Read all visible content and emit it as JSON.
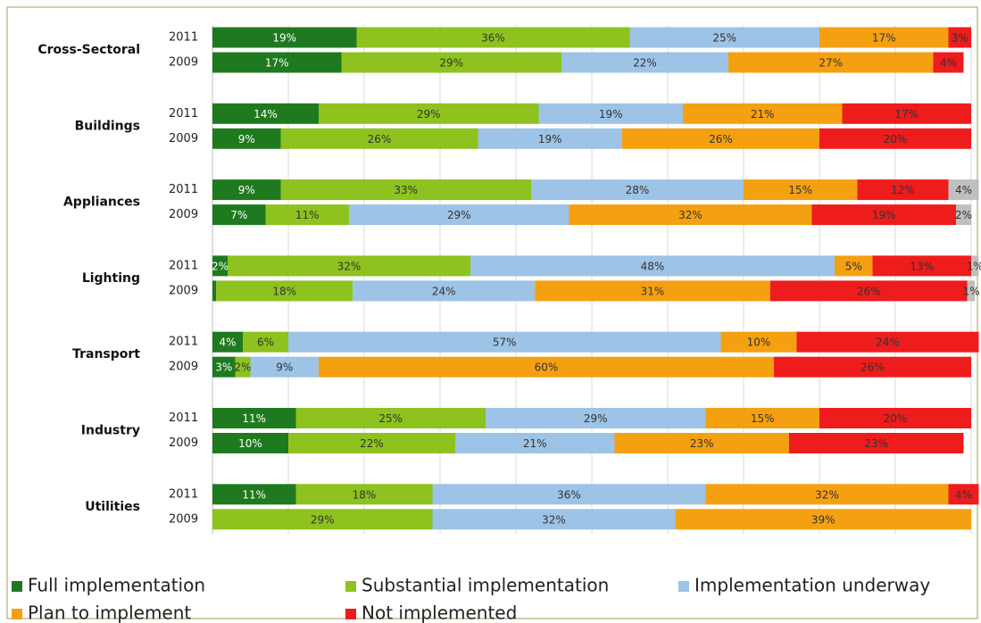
{
  "chart_data": {
    "type": "stacked-barh",
    "group_labels": [
      "Cross-Sectoral",
      "Buildings",
      "Appliances",
      "Lighting",
      "Transport",
      "Industry",
      "Utilities"
    ],
    "categories": [
      "2011",
      "2009",
      "2011",
      "2009",
      "2011",
      "2009",
      "2011",
      "2009",
      "2011",
      "2009",
      "2011",
      "2009",
      "2011",
      "2009"
    ],
    "series": [
      {
        "name": "Full implementation",
        "color": "#1f7a1f",
        "values": [
          19,
          17,
          14,
          9,
          9,
          7,
          2,
          0.5,
          4,
          3,
          11,
          10,
          11,
          null
        ],
        "value_labels": [
          "19%",
          "17%",
          "14%",
          "9%",
          "9%",
          "7%",
          "2%",
          null,
          "4%",
          "3%",
          "11%",
          "10%",
          "11%",
          null
        ]
      },
      {
        "name": "Substantial implementation",
        "color": "#8dc21f",
        "values": [
          36,
          29,
          29,
          26,
          33,
          11,
          32,
          18,
          6,
          2,
          25,
          22,
          18,
          29
        ],
        "value_labels": [
          "36%",
          "29%",
          "29%",
          "26%",
          "33%",
          "11%",
          "32%",
          "18%",
          "6%",
          "2%",
          "25%",
          "22%",
          "18%",
          "29%"
        ]
      },
      {
        "name": "Implementation underway",
        "color": "#9dc3e6",
        "values": [
          25,
          22,
          19,
          19,
          28,
          29,
          48,
          24,
          57,
          9,
          29,
          21,
          36,
          32
        ],
        "value_labels": [
          "25%",
          "22%",
          "19%",
          "19%",
          "28%",
          "29%",
          "48%",
          "24%",
          "57%",
          "9%",
          "29%",
          "21%",
          "36%",
          "32%"
        ]
      },
      {
        "name": "Plan to implement",
        "color": "#f5a010",
        "values": [
          17,
          27,
          21,
          26,
          15,
          32,
          5,
          31,
          10,
          60,
          15,
          23,
          32,
          39
        ],
        "value_labels": [
          "17%",
          "27%",
          "21%",
          "26%",
          "15%",
          "32%",
          "5%",
          "31%",
          "10%",
          "60%",
          "15%",
          "23%",
          "32%",
          "39%"
        ]
      },
      {
        "name": "Not implemented",
        "color": "#ee1c1c",
        "values": [
          3,
          4,
          17,
          20,
          12,
          19,
          13,
          26,
          24,
          26,
          20,
          23,
          4,
          null
        ],
        "value_labels": [
          "3%",
          "4%",
          "17%",
          "20%",
          "12%",
          "19%",
          "13%",
          "26%",
          "24%",
          "26%",
          "20%",
          "23%",
          "4%",
          null
        ]
      },
      {
        "color": "#bfbfbf",
        "values": [
          null,
          null,
          null,
          null,
          4,
          2,
          1,
          1,
          null,
          null,
          null,
          null,
          null,
          null
        ],
        "value_labels": [
          null,
          null,
          null,
          null,
          "4%",
          "2%",
          "1%",
          "1%",
          null,
          null,
          null,
          null,
          null,
          null
        ]
      }
    ],
    "xlim": [
      0,
      100
    ],
    "xticks": [
      0,
      10,
      20,
      30,
      40,
      50,
      60,
      70,
      80,
      90,
      100
    ],
    "grid": true
  }
}
